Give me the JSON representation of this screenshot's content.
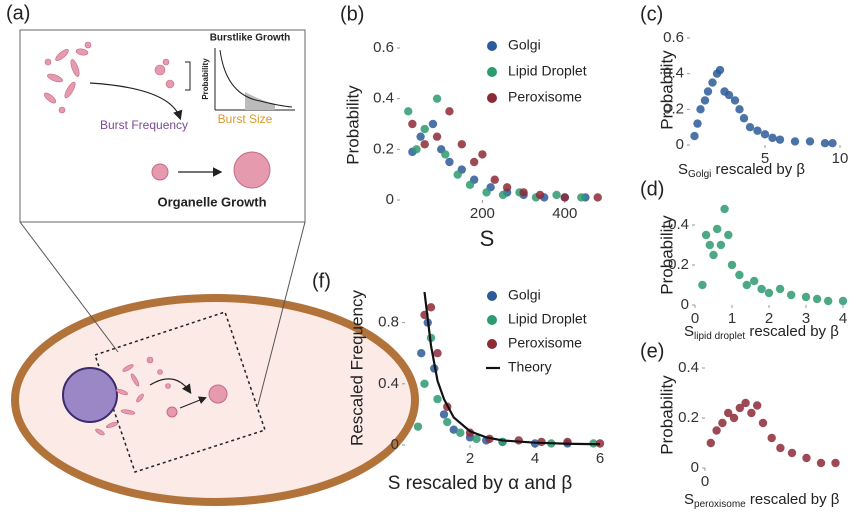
{
  "diagram": {
    "label": "(a)",
    "inset_title": "Burstlike Growth",
    "inset_ylabel": "Probability",
    "burst_frequency": "Burst Frequency",
    "burst_size": "Burst Size",
    "organelle_growth": "Organelle Growth"
  },
  "chart_data": [
    {
      "type": "scatter",
      "label": "(b)",
      "ylabel": "Probability",
      "xlabel": "S",
      "xlim": [
        0,
        500
      ],
      "ylim": [
        0,
        0.6
      ],
      "xticks": [
        200,
        400
      ],
      "yticks": [
        0,
        0.2,
        0.4,
        0.6
      ],
      "series": [
        {
          "name": "Golgi",
          "color": "#2d5a99",
          "x": [
            30,
            50,
            80,
            100,
            120,
            150,
            180,
            220,
            260,
            300,
            350,
            400,
            450
          ],
          "values": [
            0.19,
            0.25,
            0.3,
            0.2,
            0.15,
            0.12,
            0.08,
            0.05,
            0.03,
            0.02,
            0.01,
            0.01,
            0.01
          ]
        },
        {
          "name": "Lipid Droplet",
          "color": "#2e9a70",
          "x": [
            20,
            40,
            60,
            90,
            110,
            140,
            170,
            210,
            250,
            290,
            330,
            380,
            440
          ],
          "values": [
            0.35,
            0.2,
            0.28,
            0.4,
            0.18,
            0.1,
            0.06,
            0.03,
            0.02,
            0.03,
            0.01,
            0.02,
            0.01
          ]
        },
        {
          "name": "Peroxisome",
          "color": "#8c2a36",
          "x": [
            30,
            60,
            90,
            120,
            150,
            180,
            200,
            230,
            260,
            300,
            340,
            400,
            480
          ],
          "values": [
            0.3,
            0.22,
            0.25,
            0.35,
            0.22,
            0.15,
            0.18,
            0.08,
            0.05,
            0.03,
            0.02,
            0.01,
            0.01
          ]
        }
      ]
    },
    {
      "type": "scatter",
      "label": "(c)",
      "ylabel": "Probability",
      "xlabel": {
        "main": "S",
        "sub": "Golgi",
        "rest": " rescaled by β"
      },
      "xlim": [
        0,
        10
      ],
      "ylim": [
        0,
        0.6
      ],
      "xticks": [
        5,
        10
      ],
      "yticks": [
        0,
        0.2,
        0.4,
        0.6
      ],
      "series": [
        {
          "color": "#2d5a99",
          "x": [
            0.3,
            0.5,
            0.7,
            1,
            1.2,
            1.5,
            1.8,
            2,
            2.3,
            2.6,
            3,
            3.3,
            3.6,
            4,
            4.5,
            5,
            5.5,
            6,
            7,
            8,
            9,
            9.5
          ],
          "values": [
            0.05,
            0.12,
            0.2,
            0.25,
            0.3,
            0.35,
            0.4,
            0.42,
            0.3,
            0.28,
            0.25,
            0.2,
            0.15,
            0.1,
            0.08,
            0.06,
            0.04,
            0.03,
            0.02,
            0.02,
            0.01,
            0.01
          ]
        }
      ]
    },
    {
      "type": "scatter",
      "label": "(d)",
      "ylabel": "Probability",
      "xlabel": {
        "main": "S",
        "sub": "lipid droplet",
        "rest": " rescaled by β"
      },
      "xlim": [
        0,
        4
      ],
      "ylim": [
        0,
        0.5
      ],
      "xticks": [
        0,
        1,
        2,
        3,
        4
      ],
      "yticks": [
        0,
        0.2,
        0.4
      ],
      "series": [
        {
          "color": "#2e9a70",
          "x": [
            0.2,
            0.3,
            0.4,
            0.5,
            0.6,
            0.7,
            0.8,
            0.9,
            1,
            1.2,
            1.4,
            1.6,
            1.8,
            2,
            2.3,
            2.6,
            3,
            3.3,
            3.6,
            4
          ],
          "values": [
            0.1,
            0.35,
            0.3,
            0.25,
            0.38,
            0.3,
            0.48,
            0.35,
            0.2,
            0.15,
            0.1,
            0.12,
            0.08,
            0.06,
            0.08,
            0.05,
            0.04,
            0.03,
            0.02,
            0.02
          ]
        }
      ]
    },
    {
      "type": "scatter",
      "label": "(e)",
      "ylabel": "Probability",
      "xlabel": {
        "main": "S",
        "sub": "peroxisome",
        "rest": " rescaled by β"
      },
      "xlim": [
        0,
        5
      ],
      "ylim": [
        0,
        0.4
      ],
      "xticks": [
        0
      ],
      "yticks": [
        0,
        0.2,
        0.4
      ],
      "series": [
        {
          "color": "#8c2a36",
          "x": [
            0.2,
            0.4,
            0.6,
            0.8,
            1,
            1.2,
            1.4,
            1.6,
            1.8,
            2,
            2.3,
            2.6,
            3,
            3.5,
            4,
            4.5
          ],
          "values": [
            0.1,
            0.15,
            0.18,
            0.22,
            0.2,
            0.24,
            0.26,
            0.22,
            0.25,
            0.18,
            0.12,
            0.08,
            0.06,
            0.04,
            0.02,
            0.02
          ]
        }
      ]
    },
    {
      "type": "scatter",
      "label": "(f)",
      "ylabel": "Rescaled Frequency",
      "xlabel": "S rescaled by α and β",
      "xlim": [
        0,
        6
      ],
      "ylim": [
        0,
        1
      ],
      "xticks": [
        2,
        4,
        6
      ],
      "yticks": [
        0,
        0.4,
        0.8
      ],
      "series": [
        {
          "name": "Golgi",
          "color": "#2d5a99",
          "x": [
            0.5,
            0.7,
            0.9,
            1.2,
            1.5,
            2,
            2.5,
            3,
            4,
            5
          ],
          "values": [
            0.6,
            0.8,
            0.5,
            0.2,
            0.1,
            0.05,
            0.03,
            0.02,
            0.01,
            0.01
          ]
        },
        {
          "name": "Lipid Droplet",
          "color": "#2e9a70",
          "x": [
            0.4,
            0.6,
            0.8,
            1,
            1.3,
            1.7,
            2.2,
            3,
            4.5,
            5.8
          ],
          "values": [
            0.12,
            0.4,
            0.7,
            0.3,
            0.15,
            0.08,
            0.04,
            0.02,
            0.01,
            0.01
          ]
        },
        {
          "name": "Peroxisome",
          "color": "#8c2a36",
          "x": [
            0.6,
            0.8,
            1,
            1.3,
            2,
            2.6,
            3.5,
            4.2,
            5,
            6
          ],
          "values": [
            0.85,
            0.9,
            0.6,
            0.25,
            0.08,
            0.04,
            0.03,
            0.02,
            0.02,
            0.01
          ]
        },
        {
          "name": "Theory",
          "color": "#111111",
          "mark": "line",
          "x": [
            0.6,
            0.8,
            1,
            1.2,
            1.5,
            2,
            2.5,
            3,
            4,
            5,
            6
          ],
          "values": [
            1,
            0.65,
            0.42,
            0.3,
            0.18,
            0.09,
            0.05,
            0.03,
            0.015,
            0.008,
            0.005
          ]
        }
      ]
    }
  ]
}
